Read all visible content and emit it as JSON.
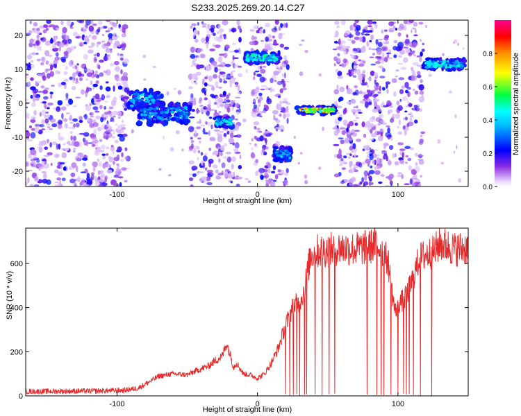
{
  "figure_title": "S233.2025.269.20.14.C27",
  "chart_data": [
    {
      "type": "heatmap",
      "title": "S233.2025.269.20.14.C27",
      "xlabel": "Height of straight line (km)",
      "ylabel": "Frequency (Hz)",
      "xlim": [
        -165,
        150
      ],
      "ylim": [
        -24.5,
        24.5
      ],
      "xticks": [
        -100,
        0,
        100
      ],
      "yticks": [
        -20,
        -10,
        0,
        10,
        20
      ],
      "xtick_labels": [
        "-100",
        "0",
        "100"
      ],
      "ytick_labels": [
        "-20",
        "-10",
        "0",
        "10",
        "20"
      ],
      "colorbar": {
        "label": "Normalized spectral amplitude",
        "range": [
          0,
          1
        ],
        "ticks": [
          0.0,
          0.2,
          0.4,
          0.6,
          0.8
        ],
        "tick_labels": [
          "0.0",
          "0.2",
          "0.4",
          "0.6",
          "0.8"
        ],
        "colormap": [
          "#ffffff",
          "#8a2be2",
          "#0000ff",
          "#00ffff",
          "#00ff00",
          "#ffff00",
          "#ff8000",
          "#ff0000",
          "#ff00aa"
        ]
      },
      "noise_regions_km": [
        [
          -165,
          -92
        ],
        [
          -48,
          -12
        ],
        [
          -4,
          22
        ],
        [
          55,
          118
        ]
      ],
      "features": [
        {
          "x_range": [
            -92,
            -68
          ],
          "freq_range": [
            -2,
            4
          ],
          "peak": 0.45
        },
        {
          "x_range": [
            -85,
            -48
          ],
          "freq_range": [
            -6,
            0
          ],
          "peak": 0.4
        },
        {
          "x_range": [
            -30,
            -18
          ],
          "freq_range": [
            -7,
            -4
          ],
          "peak": 0.5
        },
        {
          "x_range": [
            -9,
            16
          ],
          "freq_range": [
            12,
            15
          ],
          "peak": 0.55
        },
        {
          "x_range": [
            12,
            24
          ],
          "freq_range": [
            -17,
            -13
          ],
          "peak": 0.45
        },
        {
          "x_range": [
            28,
            56
          ],
          "freq_range": [
            -3,
            -1
          ],
          "peak": 0.85
        },
        {
          "x_range": [
            118,
            148
          ],
          "freq_range": [
            10,
            13
          ],
          "peak": 0.5
        }
      ]
    },
    {
      "type": "line",
      "title": "",
      "xlabel": "Height of straight line (km)",
      "ylabel": "SNR (10 * v/v)",
      "xlim": [
        -165,
        150
      ],
      "ylim": [
        0,
        760
      ],
      "xticks": [
        -100,
        0,
        100
      ],
      "yticks": [
        0,
        200,
        400,
        600
      ],
      "xtick_labels": [
        "-100",
        "0",
        "100"
      ],
      "ytick_labels": [
        "0",
        "200",
        "400",
        "600"
      ],
      "series": [
        {
          "name": "SNR",
          "color": "#e8292a",
          "x": [
            -165,
            -120,
            -95,
            -85,
            -78,
            -70,
            -60,
            -50,
            -45,
            -35,
            -30,
            -25,
            -22,
            -20,
            -17,
            -15,
            -10,
            -5,
            0,
            5,
            10,
            15,
            20,
            25,
            30,
            33,
            35,
            38,
            42,
            50,
            60,
            70,
            80,
            85,
            90,
            93,
            95,
            98,
            100,
            103,
            106,
            110,
            115,
            120,
            125,
            130,
            140,
            150
          ],
          "values": [
            20,
            22,
            25,
            35,
            60,
            90,
            100,
            95,
            110,
            135,
            160,
            180,
            240,
            200,
            130,
            150,
            100,
            95,
            80,
            100,
            150,
            220,
            320,
            400,
            430,
            470,
            540,
            640,
            655,
            660,
            670,
            665,
            675,
            690,
            640,
            610,
            500,
            380,
            420,
            430,
            450,
            520,
            620,
            640,
            650,
            690,
            665,
            670
          ],
          "dropouts_km": [
            20,
            23,
            25.5,
            28,
            30,
            33.5,
            35,
            41,
            46,
            51,
            55,
            78,
            85,
            88,
            90,
            95,
            100,
            104,
            106,
            108,
            111,
            116,
            124
          ]
        }
      ]
    }
  ]
}
